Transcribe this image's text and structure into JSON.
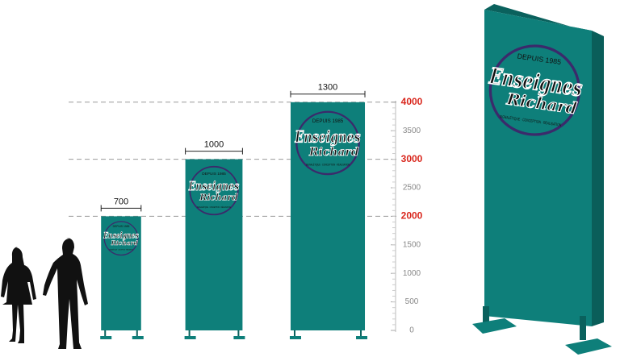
{
  "logo": {
    "brand": "Enseignes",
    "name": "Richard",
    "since": "DEPUIS 1985",
    "tagline": "SIGNALÉTIQUE · CONCEPTION · RÉALISATION"
  },
  "panels": [
    {
      "width": 700,
      "height": 2000
    },
    {
      "width": 1000,
      "height": 3000
    },
    {
      "width": 1300,
      "height": 4000
    }
  ],
  "panel_color": "#0e7f7a",
  "scale": {
    "ticks": [
      0,
      500,
      1000,
      1500,
      2000,
      2500,
      3000,
      3500,
      4000
    ],
    "highlight": [
      2000,
      3000,
      4000
    ],
    "highlight_color": "#d9261c",
    "color": "#888888"
  }
}
